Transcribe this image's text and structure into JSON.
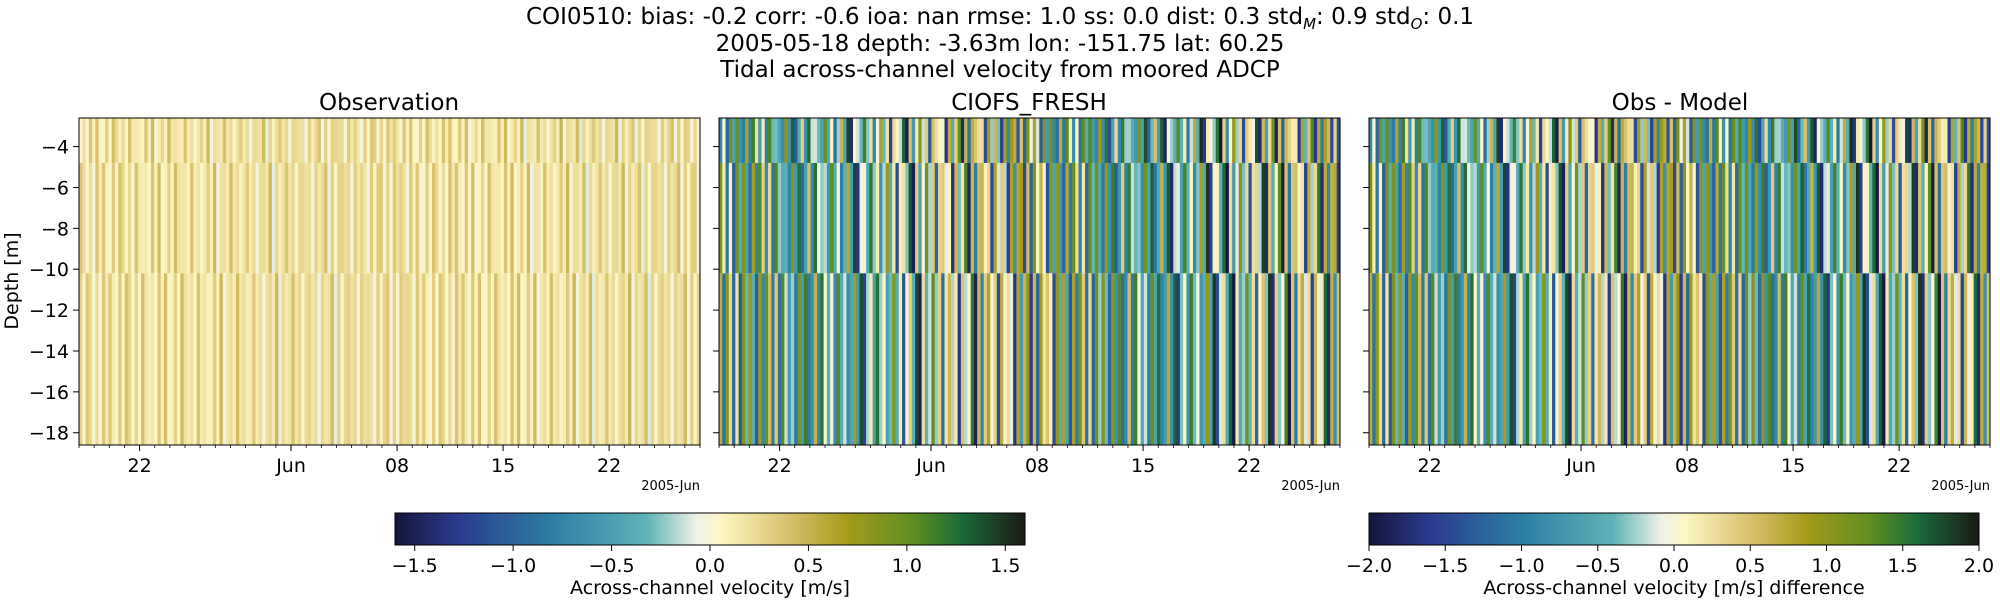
{
  "suptitle": {
    "line1_text": "COI0510: bias: -0.2  corr: -0.6  ioa: nan  rmse: 1.0  ss: 0.0  dist: 0.3",
    "std_m_label": "std",
    "std_m_sub": "M",
    "std_m_value": ": 0.9",
    "std_o_label": "std",
    "std_o_sub": "O",
    "std_o_value": ": 0.1",
    "line2": "2005-05-18 depth: -3.63m lon: -151.75 lat: 60.25",
    "line3": "Tidal across-channel velocity from moored ADCP"
  },
  "chart_data": [
    {
      "type": "heatmap",
      "title": "Observation",
      "ylabel": "Depth [m]",
      "ylim": [
        -18.6,
        -2.6
      ],
      "yticks": [
        "−4",
        "−6",
        "−8",
        "−10",
        "−12",
        "−14",
        "−16",
        "−18"
      ],
      "ytick_values": [
        -4,
        -6,
        -8,
        -10,
        -12,
        -14,
        -16,
        -18
      ],
      "xlim": [
        "2005-05-18",
        "2005-06-28"
      ],
      "xticks": [
        "22",
        "Jun",
        "08",
        "15",
        "22"
      ],
      "xtick_dates": [
        "2005-05-22",
        "2005-06-01",
        "2005-06-08",
        "2005-06-15",
        "2005-06-22"
      ],
      "x_offset_label": "2005-Jun",
      "value_range": [
        -0.1,
        0.5
      ],
      "stripe_period_days": 0.517,
      "colorbar": "velocity"
    },
    {
      "type": "heatmap",
      "title": "CIOFS_FRESH",
      "ylim": [
        -18.6,
        -2.6
      ],
      "ytick_values": [
        -4,
        -6,
        -8,
        -10,
        -12,
        -14,
        -16,
        -18
      ],
      "xlim": [
        "2005-05-18",
        "2005-06-28"
      ],
      "xticks": [
        "22",
        "Jun",
        "08",
        "15",
        "22"
      ],
      "xtick_dates": [
        "2005-05-22",
        "2005-06-01",
        "2005-06-08",
        "2005-06-15",
        "2005-06-22"
      ],
      "x_offset_label": "2005-Jun",
      "value_range": [
        -1.6,
        1.6
      ],
      "stripe_period_days": 0.517,
      "colorbar": "velocity"
    },
    {
      "type": "heatmap",
      "title": "Obs - Model",
      "ylim": [
        -18.6,
        -2.6
      ],
      "ytick_values": [
        -4,
        -6,
        -8,
        -10,
        -12,
        -14,
        -16,
        -18
      ],
      "xlim": [
        "2005-05-18",
        "2005-06-28"
      ],
      "xticks": [
        "22",
        "Jun",
        "08",
        "15",
        "22"
      ],
      "xtick_dates": [
        "2005-05-22",
        "2005-06-01",
        "2005-06-08",
        "2005-06-15",
        "2005-06-22"
      ],
      "x_offset_label": "2005-Jun",
      "value_range": [
        -2.0,
        2.0
      ],
      "stripe_period_days": 0.517,
      "colorbar": "difference"
    }
  ],
  "colorbars": {
    "velocity": {
      "label": "Across-channel velocity [m/s]",
      "vmin": -1.6,
      "vmax": 1.6,
      "ticks": [
        -1.5,
        -1.0,
        -0.5,
        0.0,
        0.5,
        1.0,
        1.5
      ],
      "tick_labels": [
        "−1.5",
        "−1.0",
        "−0.5",
        "0.0",
        "0.5",
        "1.0",
        "1.5"
      ]
    },
    "difference": {
      "label": "Across-channel velocity [m/s] difference",
      "vmin": -2.0,
      "vmax": 2.0,
      "ticks": [
        -2.0,
        -1.5,
        -1.0,
        -0.5,
        0.0,
        0.5,
        1.0,
        1.5,
        2.0
      ],
      "tick_labels": [
        "−2.0",
        "−1.5",
        "−1.0",
        "−0.5",
        "0.0",
        "0.5",
        "1.0",
        "1.5",
        "2.0"
      ]
    }
  },
  "colormap": "diverging: #15163a, #2a3b8f, #2d7fa3, #5fb3b7, #f8f5e0, #fdf6c3, #dcc270, #a49a1a, #5f8f1f, #1b6a3a, #1a1a14"
}
